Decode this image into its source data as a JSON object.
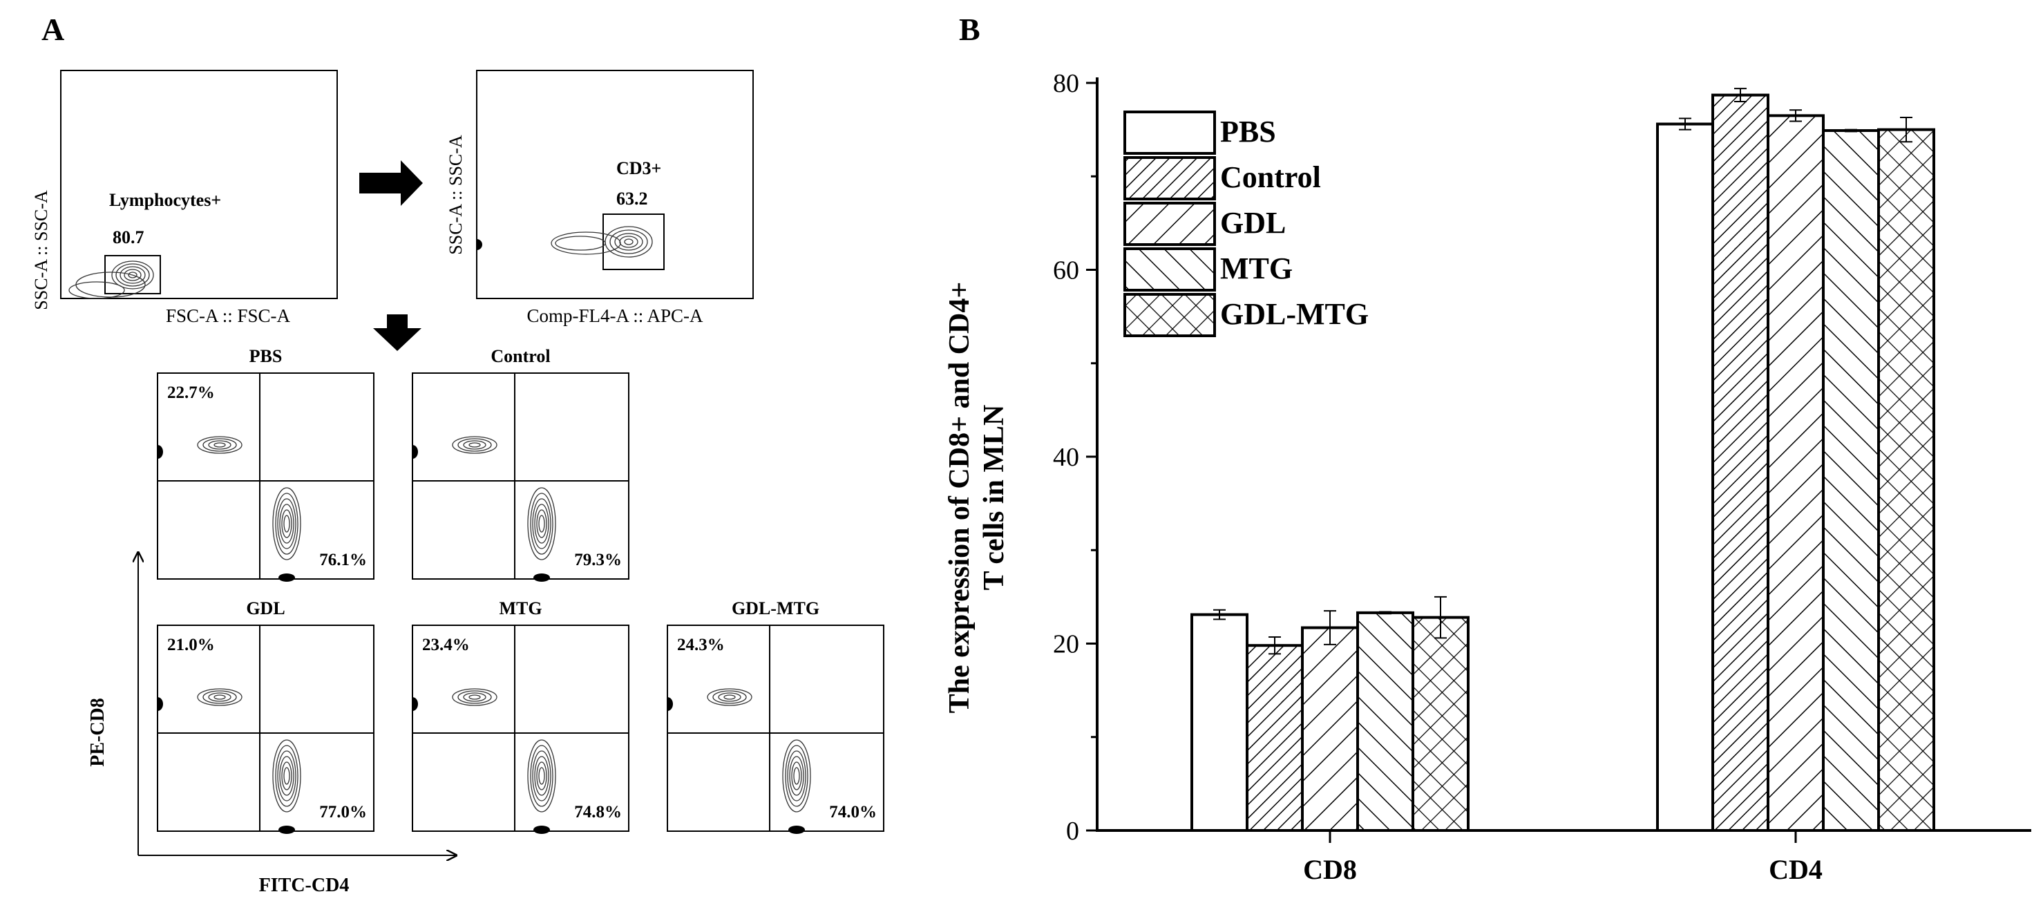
{
  "panel_a": {
    "label": "A",
    "gate1": {
      "ylabel": "SSC-A :: SSC-A",
      "xlabel": "FSC-A :: FSC-A",
      "gate_name": "Lymphocytes+",
      "gate_value": "80.7"
    },
    "gate2": {
      "ylabel": "SSC-A :: SSC-A",
      "xlabel": "Comp-FL4-A :: APC-A",
      "gate_name": "CD3+",
      "gate_value": "63.2"
    },
    "quad_ylabel": "PE-CD8",
    "quad_xlabel": "FITC-CD4",
    "quadrants": [
      {
        "name": "PBS",
        "cd8": "22.7%",
        "cd4": "76.1%"
      },
      {
        "name": "Control",
        "cd8": "",
        "cd4": "79.3%"
      },
      {
        "name": "GDL",
        "cd8": "21.0%",
        "cd4": "77.0%"
      },
      {
        "name": "MTG",
        "cd8": "23.4%",
        "cd4": "74.8%"
      },
      {
        "name": "GDL-MTG",
        "cd8": "24.3%",
        "cd4": "74.0%"
      }
    ]
  },
  "panel_b": {
    "label": "B"
  },
  "chart_data": {
    "type": "bar",
    "title": "",
    "categories": [
      "CD8",
      "CD4"
    ],
    "ylabel_line1": "The expression of CD8+ and CD4+",
    "ylabel_line2": "T cells in MLN",
    "ylim": [
      0,
      80
    ],
    "yticks": [
      0,
      20,
      40,
      60,
      80
    ],
    "legend_position": "top-left",
    "series": [
      {
        "name": "PBS",
        "pattern": "none",
        "values": [
          23.1,
          75.6
        ],
        "errors": [
          0.5,
          0.6
        ]
      },
      {
        "name": "Control",
        "pattern": "hatch-dense",
        "values": [
          19.8,
          78.7
        ],
        "errors": [
          0.9,
          0.7
        ]
      },
      {
        "name": "GDL",
        "pattern": "hatch-forward",
        "values": [
          21.7,
          76.5
        ],
        "errors": [
          1.8,
          0.6
        ]
      },
      {
        "name": "MTG",
        "pattern": "hatch-back",
        "values": [
          23.3,
          74.9
        ],
        "errors": [
          0.1,
          0.1
        ]
      },
      {
        "name": "GDL-MTG",
        "pattern": "cross",
        "values": [
          22.8,
          75.0
        ],
        "errors": [
          2.2,
          1.3
        ]
      }
    ]
  }
}
